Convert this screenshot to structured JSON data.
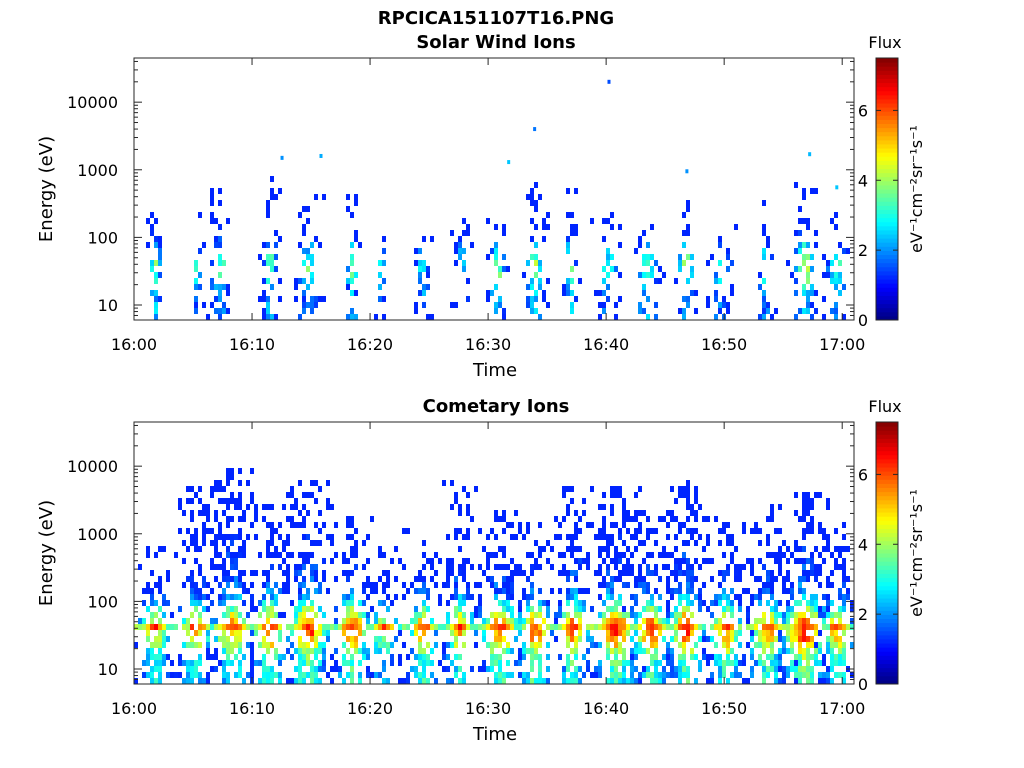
{
  "figure": {
    "title": "RPCICA151107T16.PNG"
  },
  "colorbar": {
    "label": "Flux",
    "unit_label": "eV⁻¹cm⁻²sr⁻¹s⁻¹",
    "range": [
      0,
      7.5
    ],
    "ticks": [
      "0",
      "2",
      "4",
      "6"
    ],
    "tick_values": [
      0,
      2,
      4,
      6
    ],
    "colormap": "jet"
  },
  "chart_data": [
    {
      "type": "heatmap",
      "title": "Solar Wind Ions",
      "xlabel": "Time",
      "ylabel": "Energy (eV)",
      "x_ticks": [
        "16:00",
        "16:10",
        "16:20",
        "16:30",
        "16:40",
        "16:50",
        "17:00"
      ],
      "x_tick_minutes": [
        0,
        10,
        20,
        30,
        40,
        50,
        60
      ],
      "xlim_minutes": [
        0,
        61
      ],
      "y_scale": "log",
      "y_ticks": [
        "10",
        "100",
        "1000",
        "10000"
      ],
      "y_tick_values": [
        10,
        100,
        1000,
        10000
      ],
      "ylim": [
        6,
        45000
      ],
      "grid": false,
      "bursts": [
        {
          "t": 1.8,
          "w": 0.5,
          "emax": 400,
          "peak": 4.5,
          "density": 0.55
        },
        {
          "t": 5.3,
          "w": 0.5,
          "emax": 250,
          "peak": 3.5,
          "density": 0.4
        },
        {
          "t": 7.3,
          "w": 0.8,
          "emax": 500,
          "peak": 4.0,
          "density": 0.45
        },
        {
          "t": 11.5,
          "w": 0.6,
          "emax": 700,
          "peak": 4.2,
          "density": 0.5
        },
        {
          "t": 14.8,
          "w": 0.9,
          "emax": 400,
          "peak": 4.0,
          "density": 0.45
        },
        {
          "t": 18.5,
          "w": 0.5,
          "emax": 450,
          "peak": 4.6,
          "density": 0.5
        },
        {
          "t": 21.0,
          "w": 0.4,
          "emax": 200,
          "peak": 3.5,
          "density": 0.35
        },
        {
          "t": 24.5,
          "w": 0.5,
          "emax": 200,
          "peak": 4.0,
          "density": 0.45
        },
        {
          "t": 27.8,
          "w": 0.6,
          "emax": 200,
          "peak": 3.4,
          "density": 0.35
        },
        {
          "t": 30.8,
          "w": 0.7,
          "emax": 200,
          "peak": 4.8,
          "density": 0.45
        },
        {
          "t": 34.0,
          "w": 0.7,
          "emax": 600,
          "peak": 4.6,
          "density": 0.6
        },
        {
          "t": 37.0,
          "w": 0.5,
          "emax": 500,
          "peak": 5.0,
          "density": 0.5
        },
        {
          "t": 40.2,
          "w": 0.9,
          "emax": 250,
          "peak": 3.8,
          "density": 0.4
        },
        {
          "t": 43.5,
          "w": 1.0,
          "emax": 150,
          "peak": 4.4,
          "density": 0.45
        },
        {
          "t": 46.8,
          "w": 0.7,
          "emax": 300,
          "peak": 4.6,
          "density": 0.45
        },
        {
          "t": 49.8,
          "w": 0.8,
          "emax": 200,
          "peak": 3.8,
          "density": 0.4
        },
        {
          "t": 53.5,
          "w": 0.6,
          "emax": 300,
          "peak": 3.6,
          "density": 0.4
        },
        {
          "t": 56.8,
          "w": 0.9,
          "emax": 600,
          "peak": 5.2,
          "density": 0.6
        },
        {
          "t": 59.5,
          "w": 0.8,
          "emax": 200,
          "peak": 4.2,
          "density": 0.45
        }
      ],
      "isolated_points": [
        {
          "t": 40.2,
          "e": 20000,
          "v": 1.5
        },
        {
          "t": 33.9,
          "e": 4000,
          "v": 1.8
        },
        {
          "t": 12.5,
          "e": 1500,
          "v": 2.0
        },
        {
          "t": 15.8,
          "e": 1600,
          "v": 2.2
        },
        {
          "t": 31.7,
          "e": 1300,
          "v": 2.4
        },
        {
          "t": 46.8,
          "e": 950,
          "v": 2.0
        },
        {
          "t": 57.2,
          "e": 1700,
          "v": 2.3
        },
        {
          "t": 59.5,
          "e": 550,
          "v": 2.4
        }
      ]
    },
    {
      "type": "heatmap",
      "title": "Cometary Ions",
      "xlabel": "Time",
      "ylabel": "Energy (eV)",
      "x_ticks": [
        "16:00",
        "16:10",
        "16:20",
        "16:30",
        "16:40",
        "16:50",
        "17:00"
      ],
      "x_tick_minutes": [
        0,
        10,
        20,
        30,
        40,
        50,
        60
      ],
      "xlim_minutes": [
        0,
        61
      ],
      "y_scale": "log",
      "y_ticks": [
        "10",
        "100",
        "1000",
        "10000"
      ],
      "y_tick_values": [
        10,
        100,
        1000,
        10000
      ],
      "ylim": [
        6,
        45000
      ],
      "grid": false,
      "bursts": [
        {
          "t": 1.8,
          "w": 1.2,
          "emax": 600,
          "peak": 6.0,
          "density": 0.65
        },
        {
          "t": 5.2,
          "w": 1.4,
          "emax": 4000,
          "peak": 5.6,
          "density": 0.65
        },
        {
          "t": 8.3,
          "w": 1.6,
          "emax": 8000,
          "peak": 6.0,
          "density": 0.7
        },
        {
          "t": 11.5,
          "w": 1.4,
          "emax": 2500,
          "peak": 6.6,
          "density": 0.7
        },
        {
          "t": 14.8,
          "w": 1.6,
          "emax": 6000,
          "peak": 6.8,
          "density": 0.72
        },
        {
          "t": 18.5,
          "w": 1.4,
          "emax": 1500,
          "peak": 6.8,
          "density": 0.7
        },
        {
          "t": 21.2,
          "w": 1.2,
          "emax": 600,
          "peak": 5.0,
          "density": 0.55
        },
        {
          "t": 24.5,
          "w": 1.2,
          "emax": 1000,
          "peak": 6.2,
          "density": 0.65
        },
        {
          "t": 27.6,
          "w": 1.2,
          "emax": 5500,
          "peak": 5.8,
          "density": 0.6
        },
        {
          "t": 31.0,
          "w": 1.6,
          "emax": 2000,
          "peak": 6.6,
          "density": 0.7
        },
        {
          "t": 34.0,
          "w": 1.4,
          "emax": 1200,
          "peak": 6.8,
          "density": 0.72
        },
        {
          "t": 37.2,
          "w": 1.2,
          "emax": 4000,
          "peak": 6.6,
          "density": 0.7
        },
        {
          "t": 40.8,
          "w": 1.8,
          "emax": 4500,
          "peak": 6.8,
          "density": 0.72
        },
        {
          "t": 43.8,
          "w": 1.6,
          "emax": 2000,
          "peak": 6.6,
          "density": 0.7
        },
        {
          "t": 46.8,
          "w": 1.4,
          "emax": 6000,
          "peak": 6.9,
          "density": 0.72
        },
        {
          "t": 50.2,
          "w": 1.4,
          "emax": 1500,
          "peak": 6.4,
          "density": 0.68
        },
        {
          "t": 53.6,
          "w": 1.6,
          "emax": 1500,
          "peak": 6.2,
          "density": 0.68
        },
        {
          "t": 56.8,
          "w": 1.8,
          "emax": 3500,
          "peak": 7.2,
          "density": 0.75
        },
        {
          "t": 59.6,
          "w": 1.2,
          "emax": 1200,
          "peak": 6.2,
          "density": 0.65
        }
      ],
      "band": {
        "energy": 42,
        "t_start": 0,
        "t_end": 61,
        "peak": 5.8
      }
    }
  ]
}
